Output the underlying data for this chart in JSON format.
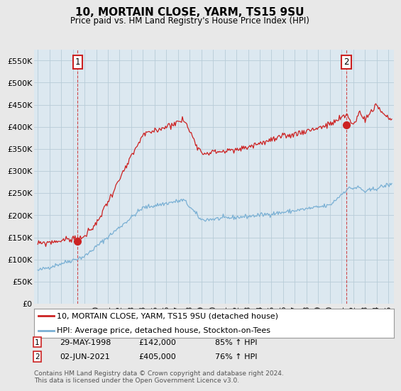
{
  "title": "10, MORTAIN CLOSE, YARM, TS15 9SU",
  "subtitle": "Price paid vs. HM Land Registry's House Price Index (HPI)",
  "ylim": [
    0,
    575000
  ],
  "yticks": [
    0,
    50000,
    100000,
    150000,
    200000,
    250000,
    300000,
    350000,
    400000,
    450000,
    500000,
    550000
  ],
  "ytick_labels": [
    "£0",
    "£50K",
    "£100K",
    "£150K",
    "£200K",
    "£250K",
    "£300K",
    "£350K",
    "£400K",
    "£450K",
    "£500K",
    "£550K"
  ],
  "xlim_start": 1994.7,
  "xlim_end": 2025.5,
  "sale1_x": 1998.41,
  "sale1_y": 142000,
  "sale1_label": "1",
  "sale1_date": "29-MAY-1998",
  "sale1_price": "£142,000",
  "sale1_hpi": "85% ↑ HPI",
  "sale2_x": 2021.42,
  "sale2_y": 405000,
  "sale2_label": "2",
  "sale2_date": "02-JUN-2021",
  "sale2_price": "£405,000",
  "sale2_hpi": "76% ↑ HPI",
  "line_color_sale": "#cc2222",
  "line_color_hpi": "#7ab0d4",
  "background_color": "#e8e8e8",
  "plot_bg_color": "#dce8f0",
  "grid_color": "#b8ccd8",
  "legend_label_sale": "10, MORTAIN CLOSE, YARM, TS15 9SU (detached house)",
  "legend_label_hpi": "HPI: Average price, detached house, Stockton-on-Tees",
  "footer": "Contains HM Land Registry data © Crown copyright and database right 2024.\nThis data is licensed under the Open Government Licence v3.0.",
  "xticks": [
    1995,
    1996,
    1997,
    1998,
    1999,
    2000,
    2001,
    2002,
    2003,
    2004,
    2005,
    2006,
    2007,
    2008,
    2009,
    2010,
    2011,
    2012,
    2013,
    2014,
    2015,
    2016,
    2017,
    2018,
    2019,
    2020,
    2021,
    2022,
    2023,
    2024,
    2025
  ]
}
